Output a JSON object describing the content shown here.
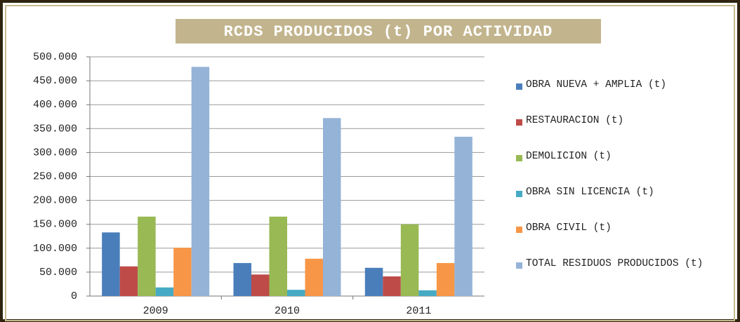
{
  "chart_data": {
    "type": "bar",
    "title": "RCDS PRODUCIDOS (t) POR ACTIVIDAD",
    "categories": [
      "2009",
      "2010",
      "2011"
    ],
    "series": [
      {
        "name": "OBRA NUEVA + AMPLIA (t)",
        "color": "#4a7ebb",
        "values": [
          133000,
          69000,
          59000
        ]
      },
      {
        "name": "RESTAURACION (t)",
        "color": "#be4b48",
        "values": [
          62000,
          45000,
          41000
        ]
      },
      {
        "name": "DEMOLICION (t)",
        "color": "#98b954",
        "values": [
          166000,
          166000,
          150000
        ]
      },
      {
        "name": "OBRA SIN LICENCIA (t)",
        "color": "#46aac5",
        "values": [
          18000,
          13000,
          12000
        ]
      },
      {
        "name": "OBRA CIVIL (t)",
        "color": "#f79646",
        "values": [
          101000,
          78000,
          69000
        ]
      },
      {
        "name": "TOTAL RESIDUOS PRODUCIDOS (t)",
        "color": "#95b3d7",
        "values": [
          479000,
          372000,
          333000
        ]
      }
    ],
    "ylim": [
      0,
      500000
    ],
    "yticks": [
      0,
      {
        "value": 50000,
        "label": "50.000"
      },
      {
        "value": 100000,
        "label": "100.000"
      },
      {
        "value": 150000,
        "label": "150.000"
      },
      {
        "value": 200000,
        "label": "200.000"
      },
      {
        "value": 250000,
        "label": "250.000"
      },
      {
        "value": 300000,
        "label": "300.000"
      },
      {
        "value": 350000,
        "label": "350.000"
      },
      {
        "value": 400000,
        "label": "400.000"
      },
      {
        "value": 450000,
        "label": "450.000"
      },
      {
        "value": 500000,
        "label": "500.000"
      }
    ],
    "grid": true,
    "legend": "right"
  }
}
